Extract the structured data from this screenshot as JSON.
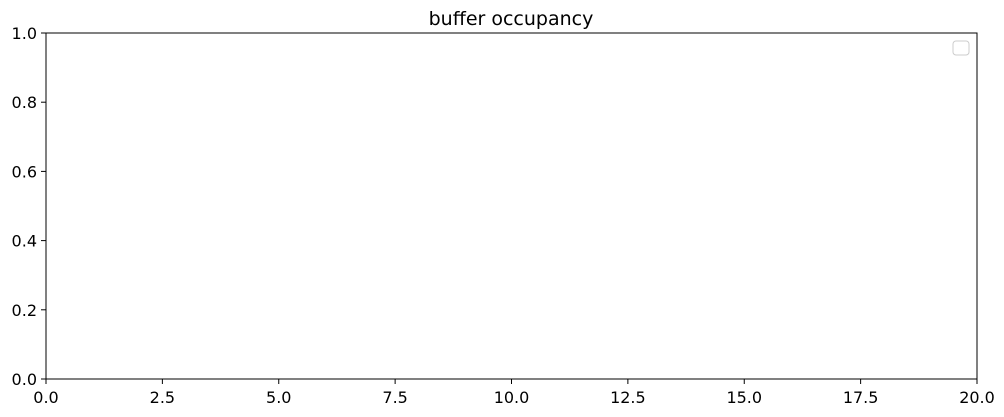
{
  "chart_data": {
    "type": "line",
    "title": "buffer occupancy",
    "xlabel": "",
    "ylabel": "",
    "xlim": [
      0,
      20
    ],
    "ylim": [
      0,
      1
    ],
    "x_ticks": [
      0,
      2.5,
      5,
      7.5,
      10,
      12.5,
      15,
      17.5,
      20
    ],
    "x_tick_labels": [
      "0.0",
      "2.5",
      "5.0",
      "7.5",
      "10.0",
      "12.5",
      "15.0",
      "17.5",
      "20.0"
    ],
    "y_ticks": [
      0,
      0.2,
      0.4,
      0.6,
      0.8,
      1.0
    ],
    "y_tick_labels": [
      "0.0",
      "0.2",
      "0.4",
      "0.6",
      "0.8",
      "1.0"
    ],
    "series": [],
    "grid": false,
    "legend": {
      "placement": "top-right",
      "entries": []
    }
  }
}
